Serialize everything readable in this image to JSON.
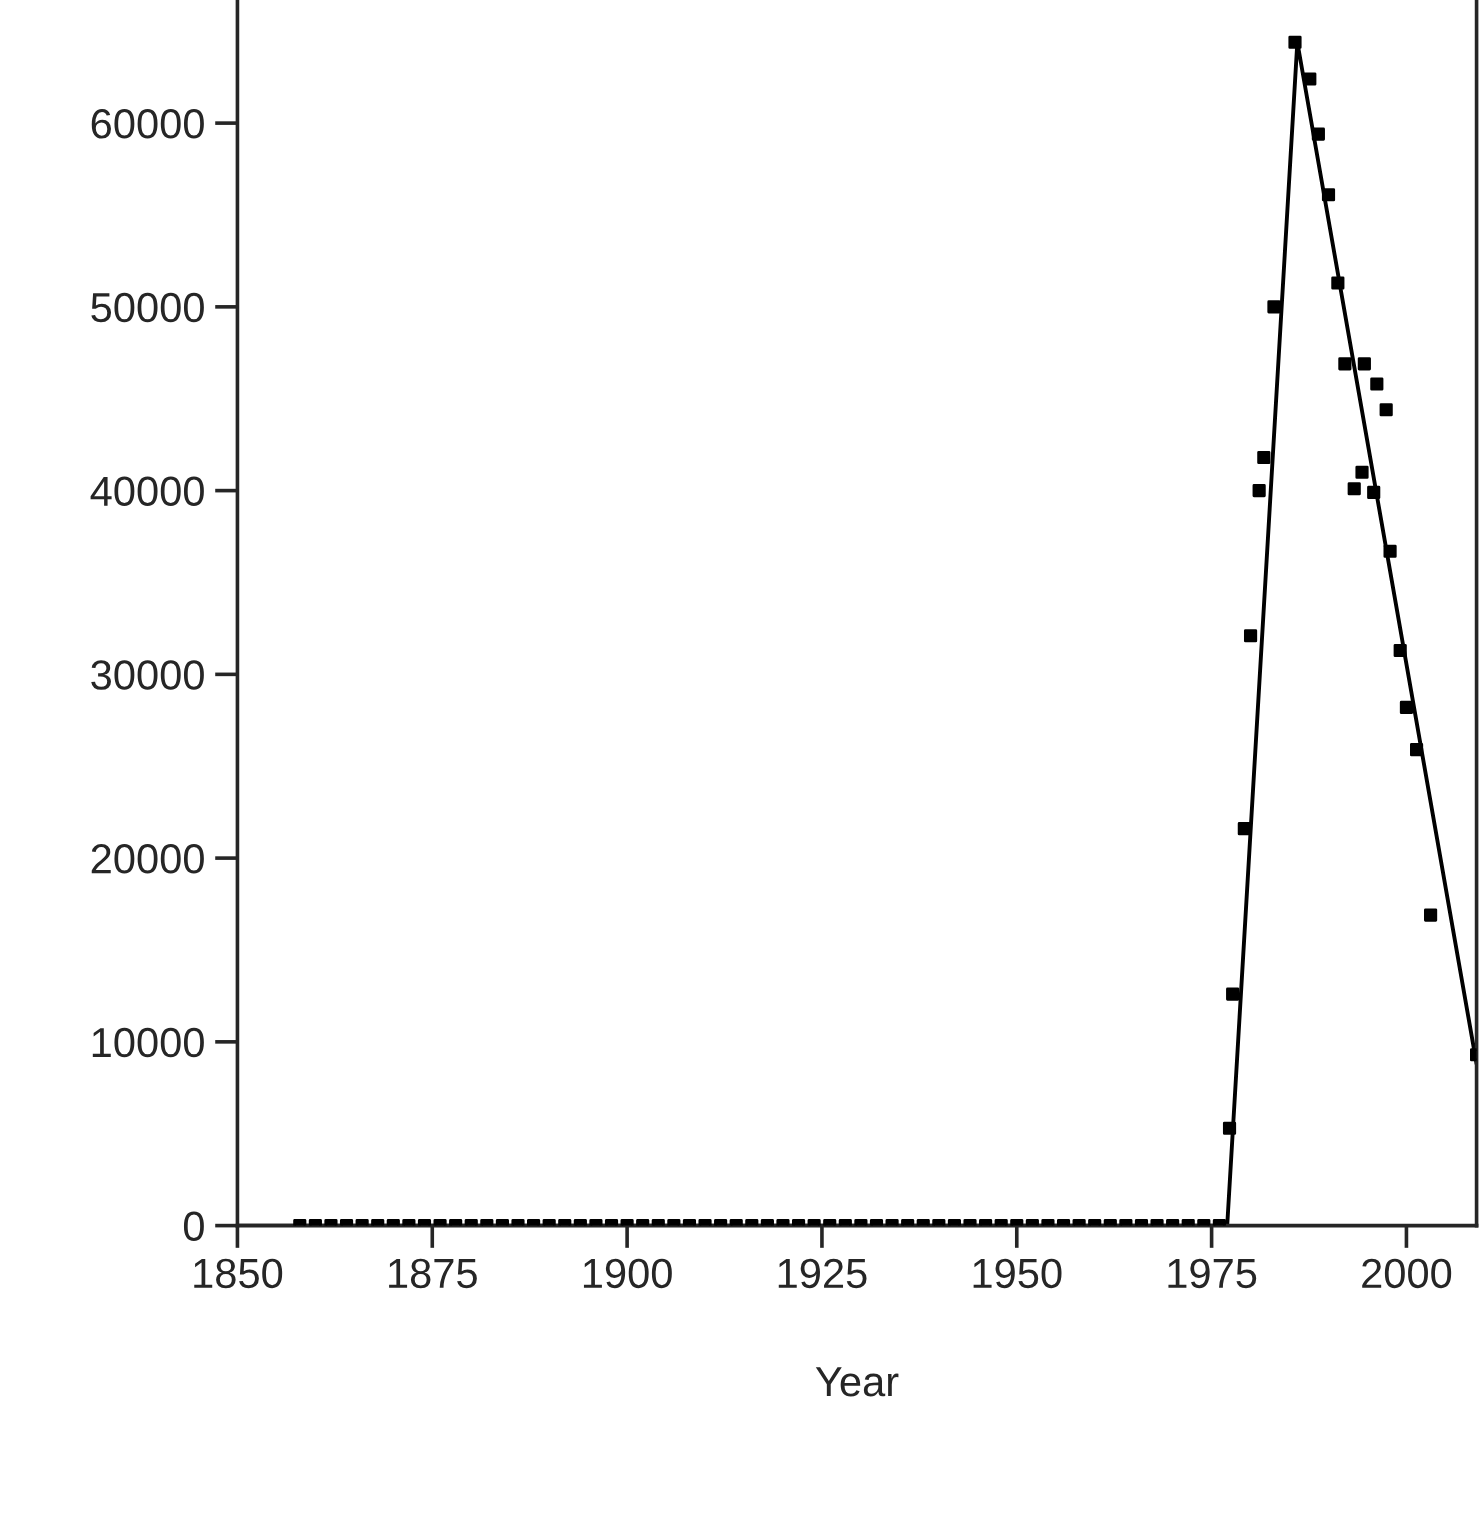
{
  "chart_data": {
    "type": "scatter",
    "xlabel": "Year",
    "xlim": [
      1850,
      2009
    ],
    "ylim": [
      0,
      66700
    ],
    "xticks": [
      1850,
      1875,
      1900,
      1925,
      1950,
      1975,
      2000
    ],
    "yticks": [
      0,
      10000,
      20000,
      30000,
      40000,
      50000,
      60000
    ],
    "grid": false,
    "legend": false,
    "marker": "square",
    "series": [
      {
        "color": "#000000",
        "x": [
          1858,
          1860,
          1862,
          1864,
          1866,
          1868,
          1870,
          1872,
          1874,
          1876,
          1878,
          1880,
          1882,
          1884,
          1886,
          1888,
          1890,
          1892,
          1894,
          1896,
          1898,
          1900,
          1902,
          1904,
          1906,
          1908,
          1910,
          1912,
          1914,
          1916,
          1918,
          1920,
          1922,
          1924,
          1926,
          1928,
          1930,
          1932,
          1934,
          1936,
          1938,
          1940,
          1942,
          1944,
          1946,
          1948,
          1950,
          1952,
          1954,
          1956,
          1958,
          1960,
          1962,
          1964,
          1966,
          1968,
          1970,
          1972,
          1974,
          1976,
          1977.3,
          1977.7,
          1979.2,
          1980.0,
          1981.1,
          1981.7,
          1983.0,
          1985.7,
          1987.6,
          1988.7,
          1990.0,
          1991.2,
          1992.1,
          1993.3,
          1994.3,
          1994.6,
          1995.8,
          1996.2,
          1997.4,
          1997.9,
          1999.2,
          2000.0,
          2001.3,
          2003.1,
          2009.0
        ],
        "values": [
          0,
          0,
          0,
          0,
          0,
          0,
          0,
          0,
          0,
          0,
          0,
          0,
          0,
          0,
          0,
          0,
          0,
          0,
          0,
          0,
          0,
          0,
          0,
          0,
          0,
          0,
          0,
          0,
          0,
          0,
          0,
          0,
          0,
          0,
          0,
          0,
          0,
          0,
          0,
          0,
          0,
          0,
          0,
          0,
          0,
          0,
          0,
          0,
          0,
          0,
          0,
          0,
          0,
          0,
          0,
          0,
          0,
          0,
          0,
          0,
          5300,
          12600,
          21600,
          32100,
          40000,
          41800,
          50000,
          64400,
          62400,
          59400,
          56100,
          51300,
          46900,
          40100,
          41000,
          46900,
          39900,
          45800,
          44400,
          36700,
          31300,
          28200,
          25900,
          16900,
          9300
        ]
      },
      {
        "type": "line",
        "color": "#000000",
        "marker": "none",
        "x": [
          1850,
          1977,
          1986,
          2009
        ],
        "values": [
          0,
          0,
          64400,
          8800
        ]
      }
    ]
  }
}
